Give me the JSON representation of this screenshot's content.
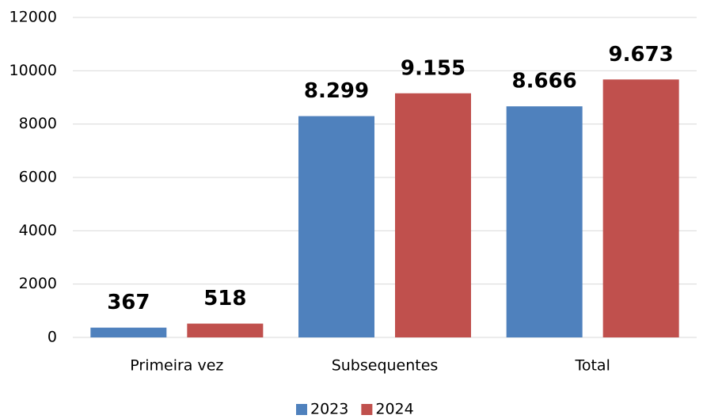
{
  "chart_data": {
    "type": "bar",
    "categories": [
      "Primeira vez",
      "Subsequentes",
      "Total"
    ],
    "series": [
      {
        "name": "2023",
        "color": "#4f81bd",
        "values": [
          367,
          8299,
          8666
        ],
        "value_labels": [
          "367",
          "8.299",
          "8.666"
        ]
      },
      {
        "name": "2024",
        "color": "#c0504d",
        "values": [
          518,
          9155,
          9673
        ],
        "value_labels": [
          "518",
          "9.155",
          "9.673"
        ]
      }
    ],
    "ylim": [
      0,
      12000
    ],
    "yticks": [
      0,
      2000,
      4000,
      6000,
      8000,
      10000,
      12000
    ],
    "grid": true,
    "legend": "bottom"
  }
}
